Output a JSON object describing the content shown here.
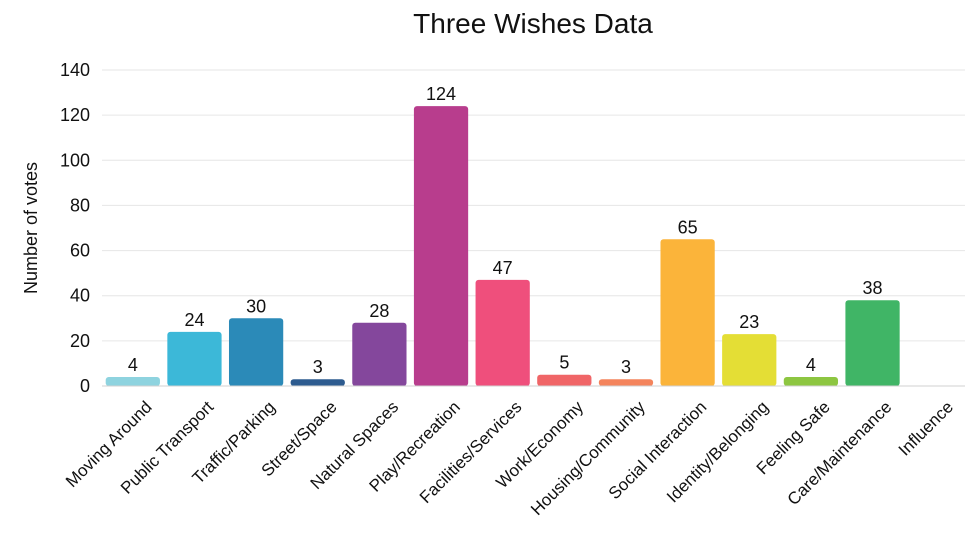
{
  "chart_data": {
    "type": "bar",
    "title": "Three Wishes Data",
    "xlabel": "",
    "ylabel": "Number of votes",
    "ylim": [
      0,
      140
    ],
    "yticks": [
      0,
      20,
      40,
      60,
      80,
      100,
      120,
      140
    ],
    "grid": true,
    "categories": [
      "Moving Around",
      "Public Transport",
      "Traffic/Parking",
      "Street/Space",
      "Natural Spaces",
      "Play/Recreation",
      "Facilities/Services",
      "Work/Economy",
      "Housing/Community",
      "Social Interaction",
      "Identity/Belonging",
      "Feeling Safe",
      "Care/Maintenance",
      "Influence"
    ],
    "values": [
      4,
      24,
      30,
      3,
      28,
      124,
      47,
      5,
      3,
      65,
      23,
      4,
      38,
      0
    ],
    "data_labels": [
      "4",
      "24",
      "30",
      "3",
      "28",
      "124",
      "47",
      "5",
      "3",
      "65",
      "23",
      "4",
      "38",
      ""
    ],
    "colors": [
      "#8ed3df",
      "#3cb8d8",
      "#2b8ab8",
      "#2d5b8f",
      "#84479c",
      "#b83d8d",
      "#ef4f7c",
      "#f06567",
      "#f4845c",
      "#fbb43a",
      "#e4de35",
      "#8dc641",
      "#40b566",
      "#40b566"
    ]
  }
}
